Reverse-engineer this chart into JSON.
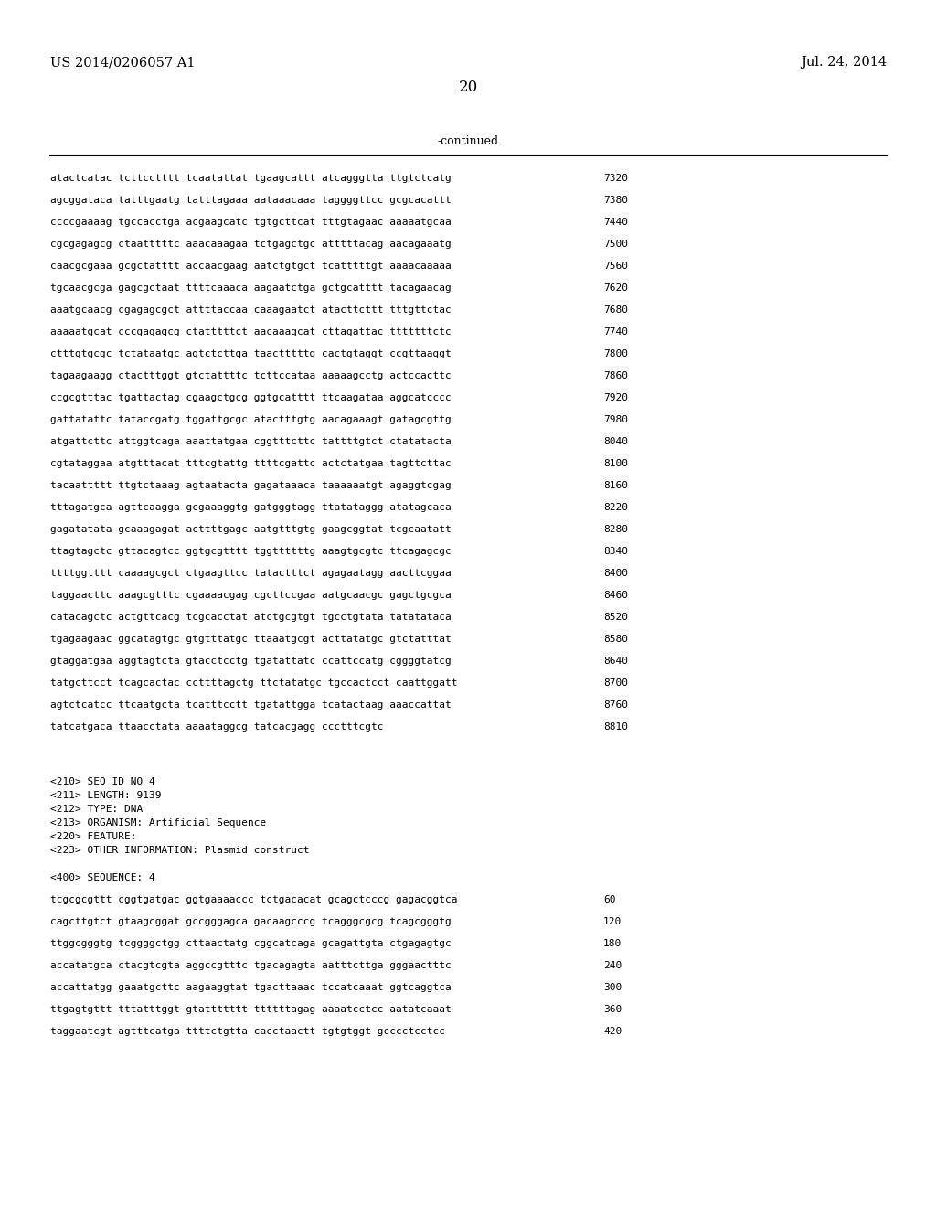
{
  "page_number": "20",
  "patent_number": "US 2014/0206057 A1",
  "patent_date": "Jul. 24, 2014",
  "continued_label": "-continued",
  "sequence_lines": [
    [
      "atactcatac tcttcctttt tcaatattat tgaagcattt atcagggtta ttgtctcatg",
      "7320"
    ],
    [
      "agcggataca tatttgaatg tatttagaaa aataaacaaa taggggttcc gcgcacattt",
      "7380"
    ],
    [
      "ccccgaaaag tgccacctga acgaagcatc tgtgcttcat tttgtagaac aaaaatgcaa",
      "7440"
    ],
    [
      "cgcgagagcg ctaatttttc aaacaaagaa tctgagctgc atttttacag aacagaaatg",
      "7500"
    ],
    [
      "caacgcgaaa gcgctatttt accaacgaag aatctgtgct tcatttttgt aaaacaaaaa",
      "7560"
    ],
    [
      "tgcaacgcga gagcgctaat ttttcaaaca aagaatctga gctgcatttt tacagaacag",
      "7620"
    ],
    [
      "aaatgcaacg cgagagcgct attttaccaa caaagaatct atacttcttt tttgttctac",
      "7680"
    ],
    [
      "aaaaatgcat cccgagagcg ctatttttct aacaaagcat cttagattac tttttttctc",
      "7740"
    ],
    [
      "ctttgtgcgc tctataatgc agtctcttga taactttttg cactgtaggt ccgttaaggt",
      "7800"
    ],
    [
      "tagaagaagg ctactttggt gtctattttc tcttccataa aaaaagcctg actccacttc",
      "7860"
    ],
    [
      "ccgcgtttac tgattactag cgaagctgcg ggtgcatttt ttcaagataa aggcatcccc",
      "7920"
    ],
    [
      "gattatattc tataccgatg tggattgcgc atactttgtg aacagaaagt gatagcgttg",
      "7980"
    ],
    [
      "atgattcttc attggtcaga aaattatgaa cggtttcttc tattttgtct ctatatacta",
      "8040"
    ],
    [
      "cgtataggaa atgtttacat tttcgtattg ttttcgattc actctatgaa tagttcttac",
      "8100"
    ],
    [
      "tacaattttt ttgtctaaag agtaatacta gagataaaca taaaaaatgt agaggtcgag",
      "8160"
    ],
    [
      "tttagatgca agttcaagga gcgaaaggtg gatgggtagg ttatataggg atatagcaca",
      "8220"
    ],
    [
      "gagatatata gcaaagagat acttttgagc aatgtttgtg gaagcggtat tcgcaatatt",
      "8280"
    ],
    [
      "ttagtagctc gttacagtcc ggtgcgtttt tggttttttg aaagtgcgtc ttcagagcgc",
      "8340"
    ],
    [
      "ttttggtttt caaaagcgct ctgaagttcc tatactttct agagaatagg aacttcggaa",
      "8400"
    ],
    [
      "taggaacttc aaagcgtttc cgaaaacgag cgcttccgaa aatgcaacgc gagctgcgca",
      "8460"
    ],
    [
      "catacagctc actgttcacg tcgcacctat atctgcgtgt tgcctgtata tatatataca",
      "8520"
    ],
    [
      "tgagaagaac ggcatagtgc gtgtttatgc ttaaatgcgt acttatatgc gtctatttat",
      "8580"
    ],
    [
      "gtaggatgaa aggtagtcta gtacctcctg tgatattatc ccattccatg cggggtatcg",
      "8640"
    ],
    [
      "tatgcttcct tcagcactac ccttttagctg ttctatatgc tgccactcct caattggatt",
      "8700"
    ],
    [
      "agtctcatcc ttcaatgcta tcatttcctt tgatattgga tcatactaag aaaccattat",
      "8760"
    ],
    [
      "tatcatgaca ttaacctata aaaataggcg tatcacgagg ccctttcgtc",
      "8810"
    ]
  ],
  "metadata_lines": [
    "<210> SEQ ID NO 4",
    "<211> LENGTH: 9139",
    "<212> TYPE: DNA",
    "<213> ORGANISM: Artificial Sequence",
    "<220> FEATURE:",
    "<223> OTHER INFORMATION: Plasmid construct"
  ],
  "sequence400_label": "<400> SEQUENCE: 4",
  "sequence400_lines": [
    [
      "tcgcgcgttt cggtgatgac ggtgaaaaccc tctgacacat gcagctcccg gagacggtca",
      "60"
    ],
    [
      "cagcttgtct gtaagcggat gccgggagca gacaagcccg tcagggcgcg tcagcgggtg",
      "120"
    ],
    [
      "ttggcgggtg tcggggctgg cttaactatg cggcatcaga gcagattgta ctgagagtgc",
      "180"
    ],
    [
      "accatatgca ctacgtcgta aggccgtttc tgacagagta aatttcttga gggaactttc",
      "240"
    ],
    [
      "accattatgg gaaatgcttc aagaaggtat tgacttaaac tccatcaaat ggtcaggtca",
      "300"
    ],
    [
      "ttgagtgttt tttatttggt gtattttttt ttttttagag aaaatcctcc aatatcaaat",
      "360"
    ],
    [
      "taggaatcgt agtttcatga ttttctgtta cacctaactt tgtgtggt gcccctcctcc",
      "420"
    ]
  ],
  "bg_color": "#ffffff",
  "text_color": "#000000",
  "mono_font_size": 8.0,
  "header_font_size": 10.5,
  "page_num_font_size": 12
}
